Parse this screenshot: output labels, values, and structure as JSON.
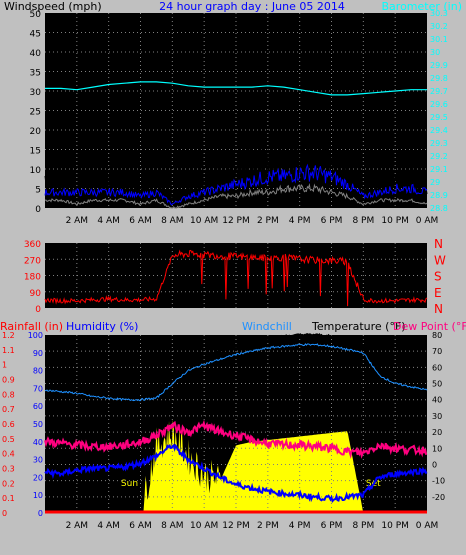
{
  "colors": {
    "background": "#C0C0C0",
    "plot_bg": "#000000",
    "grid": "#808080",
    "windspeed": "#000000",
    "windspeed_avg": "#0000FF",
    "windspeed_min": "#808080",
    "barometer": "#00FFFF",
    "winddir": "#FF0000",
    "rainfall": "#FF0000",
    "humidity": "#0000FF",
    "windchill": "#1E90FF",
    "temperature": "#000000",
    "dewpoint": "#FF007F",
    "solar": "#FFFF00"
  },
  "chart_data": [
    {
      "type": "line",
      "title": "24 hour graph day : June 05 2014",
      "ylabel": "Windspeed (mph)",
      "y2label": "Barometer (in)",
      "xticks": [
        "2 AM",
        "4 AM",
        "6 AM",
        "8 AM",
        "10 AM",
        "12 PM",
        "2 PM",
        "4 PM",
        "6 PM",
        "8 PM",
        "10 PM",
        "0 AM"
      ],
      "ylim": [
        0,
        50
      ],
      "yticks": [
        0,
        5,
        10,
        15,
        20,
        25,
        30,
        35,
        40,
        45,
        50
      ],
      "y2lim": [
        28.8,
        30.3
      ],
      "y2ticks": [
        "28.8",
        "28.9",
        "29",
        "29.1",
        "29.2",
        "29.3",
        "29.4",
        "29.5",
        "29.6",
        "29.7",
        "29.8",
        "29.9",
        "30",
        "30.1",
        "30.2",
        "30.3"
      ],
      "x_hours": [
        0,
        1,
        2,
        3,
        4,
        5,
        6,
        7,
        8,
        9,
        10,
        11,
        12,
        13,
        14,
        15,
        16,
        17,
        18,
        19,
        20,
        21,
        22,
        23,
        24
      ],
      "series": [
        {
          "name": "Windspeed (mph)",
          "values": [
            7,
            6,
            5,
            6,
            6,
            7,
            5,
            6,
            2,
            5,
            7,
            8,
            9,
            11,
            12,
            13,
            14,
            13,
            12,
            9,
            5,
            6,
            7,
            7,
            5
          ]
        },
        {
          "name": "Windspeed avg",
          "values": [
            4,
            4,
            4,
            4,
            4,
            4,
            3,
            4,
            1,
            3,
            4,
            5,
            6,
            7,
            8,
            8,
            9,
            9,
            8,
            6,
            3,
            4,
            5,
            5,
            4
          ]
        },
        {
          "name": "Windspeed min",
          "values": [
            2,
            2,
            1,
            2,
            2,
            2,
            1,
            2,
            0,
            1,
            2,
            3,
            3,
            4,
            4,
            5,
            5,
            5,
            4,
            3,
            1,
            2,
            2,
            2,
            1
          ]
        },
        {
          "name": "Barometer (in)",
          "values": [
            29.72,
            29.72,
            29.71,
            29.73,
            29.75,
            29.76,
            29.77,
            29.77,
            29.76,
            29.74,
            29.73,
            29.73,
            29.73,
            29.73,
            29.74,
            29.73,
            29.71,
            29.69,
            29.67,
            29.67,
            29.68,
            29.69,
            29.7,
            29.71,
            29.71
          ]
        }
      ]
    },
    {
      "type": "scatter",
      "title": "",
      "ylabel": "",
      "ylim": [
        0,
        360
      ],
      "yticks": [
        0,
        90,
        180,
        270,
        360
      ],
      "compass_labels": [
        "N",
        "W",
        "S",
        "E",
        "N"
      ],
      "x_hours": [
        0,
        1,
        2,
        3,
        4,
        5,
        6,
        7,
        8,
        9,
        10,
        11,
        12,
        13,
        14,
        15,
        16,
        17,
        18,
        19,
        20,
        21,
        22,
        23,
        24
      ],
      "series": [
        {
          "name": "",
          "values": [
            45,
            40,
            40,
            45,
            50,
            45,
            45,
            50,
            290,
            300,
            295,
            290,
            285,
            280,
            275,
            280,
            270,
            265,
            262,
            258,
            45,
            40,
            40,
            45,
            45
          ]
        }
      ]
    },
    {
      "type": "line",
      "title": "",
      "ylabel": "Rainfall (in)",
      "y1_ticks": [
        "0",
        "0.1",
        "0.2",
        "0.3",
        "0.4",
        "0.5",
        "0.6",
        "0.7",
        "0.8",
        "0.9",
        "1",
        "1.1",
        "1.2"
      ],
      "humidity_label": "Humidity (%)",
      "humidity_ticks": [
        "0",
        "10",
        "20",
        "30",
        "40",
        "50",
        "60",
        "70",
        "80",
        "90",
        "100"
      ],
      "windchill_label": "Windchill",
      "temperature_label": "Temperature (°F)",
      "dewpoint_label": "Dew Point (°F)",
      "y2_ticks": [
        "-20",
        "-10",
        "0",
        "10",
        "20",
        "30",
        "40",
        "50",
        "60",
        "70",
        "80"
      ],
      "y2lim": [
        -30,
        80
      ],
      "sun_labels": [
        "Sun",
        "Set"
      ],
      "sunrise_hour": 5.9,
      "sunset_hour": 20.1,
      "x_hours": [
        0,
        1,
        2,
        3,
        4,
        5,
        6,
        7,
        8,
        9,
        10,
        11,
        12,
        13,
        14,
        15,
        16,
        17,
        18,
        19,
        20,
        21,
        22,
        23,
        24
      ],
      "series": [
        {
          "name": "Temperature (°F)",
          "values": [
            52,
            51,
            49,
            47,
            46,
            45,
            45,
            47,
            55,
            62,
            66,
            70,
            73,
            76,
            78,
            79,
            80,
            80,
            79,
            76,
            72,
            58,
            54,
            52,
            51
          ]
        },
        {
          "name": "Windchill",
          "values": [
            46,
            45,
            44,
            42,
            41,
            40,
            40,
            41,
            50,
            58,
            62,
            65,
            68,
            70,
            72,
            73,
            74,
            74,
            73,
            71,
            69,
            55,
            50,
            48,
            46
          ]
        },
        {
          "name": "Dew Point (°F)",
          "values": [
            14,
            13,
            12,
            11,
            11,
            12,
            14,
            18,
            24,
            20,
            24,
            20,
            18,
            15,
            13,
            12,
            12,
            11,
            10,
            8,
            7,
            12,
            10,
            9,
            9
          ]
        },
        {
          "name": "Humidity (%)",
          "values": [
            23,
            22,
            24,
            25,
            25,
            26,
            28,
            32,
            38,
            30,
            25,
            20,
            16,
            14,
            12,
            11,
            10,
            9,
            8,
            9,
            10,
            20,
            22,
            23,
            24
          ]
        },
        {
          "name": "Rainfall (in)",
          "values": [
            0,
            0,
            0,
            0,
            0,
            0,
            0,
            0,
            0,
            0,
            0,
            0,
            0,
            0,
            0,
            0,
            0,
            0,
            0,
            0,
            0,
            0,
            0,
            0,
            0
          ]
        },
        {
          "name": "Solar",
          "values": [
            0,
            0,
            0,
            0,
            0,
            0,
            0,
            38,
            45,
            32,
            22,
            18,
            38,
            40,
            41,
            42,
            43,
            44,
            45,
            46,
            0,
            0,
            0,
            0,
            0
          ]
        }
      ]
    }
  ]
}
